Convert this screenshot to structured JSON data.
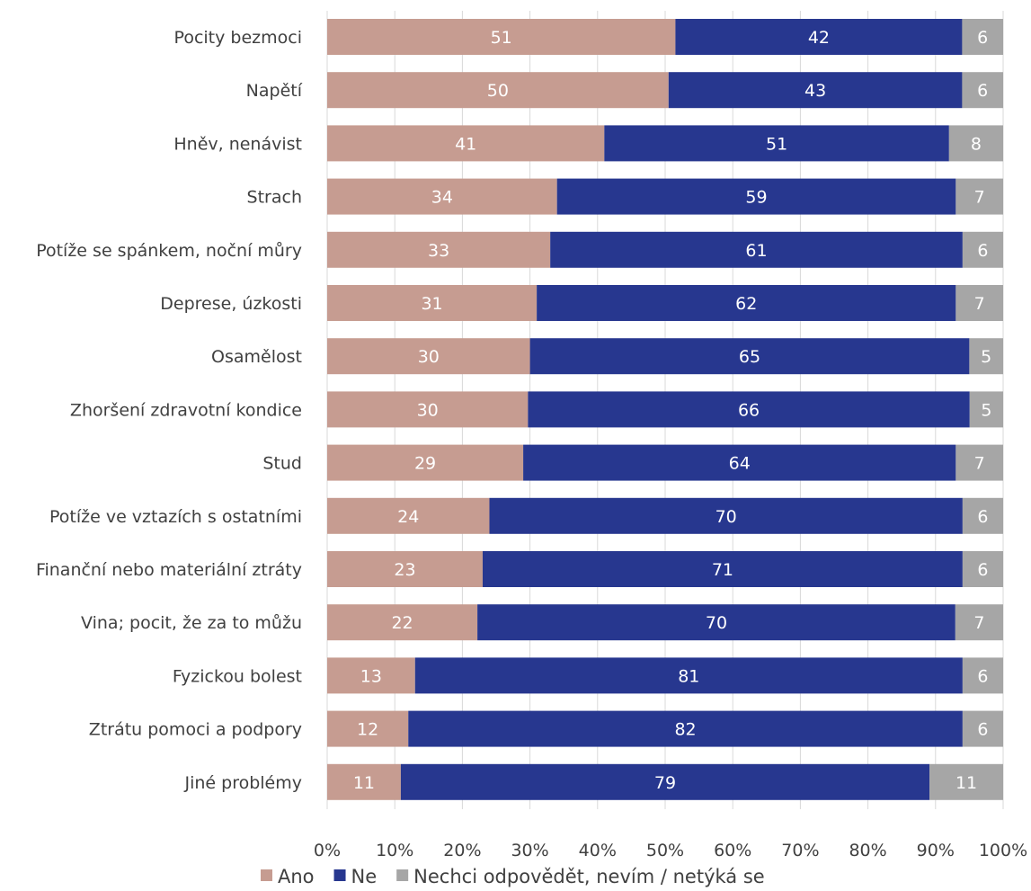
{
  "chart_data": {
    "type": "bar",
    "orientation": "horizontal",
    "stacked": "percent",
    "categories": [
      "Pocity bezmoci",
      "Napětí",
      "Hněv, nenávist",
      "Strach",
      "Potíže se spánkem, noční můry",
      "Deprese, úzkosti",
      "Osamělost",
      "Zhoršení zdravotní kondice",
      "Stud",
      "Potíže ve vztazích s ostatními",
      "Finanční nebo materiální ztráty",
      "Vina; pocit, že za to můžu",
      "Fyzickou bolest",
      "Ztrátu pomoci a podpory",
      "Jiné problémy"
    ],
    "series": [
      {
        "name": "Ano",
        "color": "#c69c91",
        "values": [
          51,
          50,
          41,
          34,
          33,
          31,
          30,
          30,
          29,
          24,
          23,
          22,
          13,
          12,
          11
        ]
      },
      {
        "name": "Ne",
        "color": "#27378f",
        "values": [
          42,
          43,
          51,
          59,
          61,
          62,
          65,
          66,
          64,
          70,
          71,
          70,
          81,
          82,
          79
        ]
      },
      {
        "name": "Nechci odpovědět, nevím / netýká se",
        "color": "#a6a6a6",
        "values": [
          6,
          6,
          8,
          7,
          6,
          7,
          5,
          5,
          7,
          6,
          6,
          7,
          6,
          6,
          11
        ]
      }
    ],
    "xlim": [
      0,
      100
    ],
    "x_ticks": [
      "0%",
      "10%",
      "20%",
      "30%",
      "40%",
      "50%",
      "60%",
      "70%",
      "80%",
      "90%",
      "100%"
    ],
    "grid": true,
    "legend_position": "bottom"
  }
}
